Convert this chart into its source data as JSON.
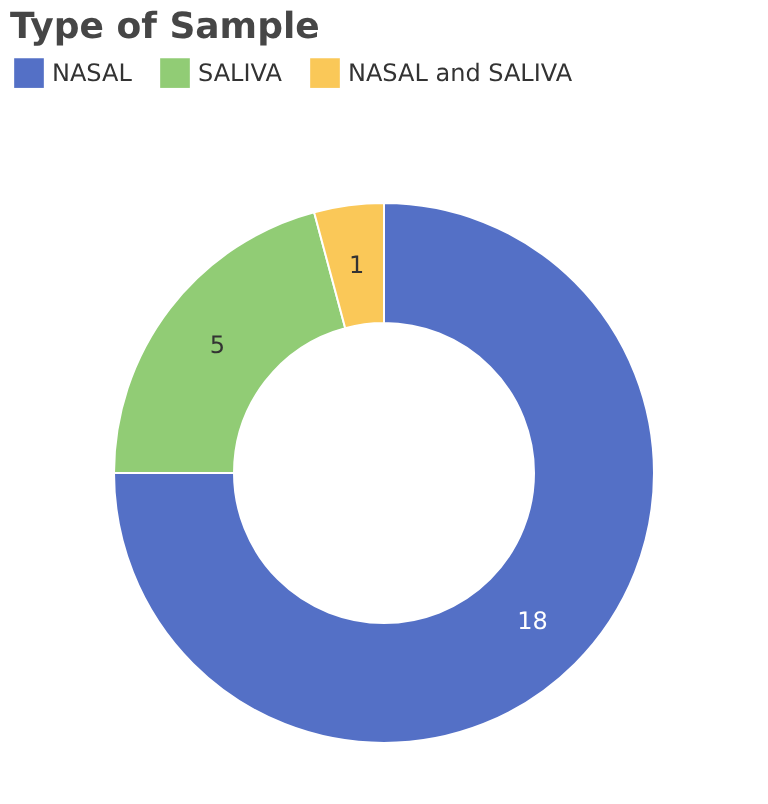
{
  "chart_data": {
    "type": "donut",
    "title": "Type of Sample",
    "categories": [
      "NASAL",
      "SALIVA",
      "NASAL and SALIVA"
    ],
    "values": [
      18,
      5,
      1
    ],
    "colors": [
      "#5470c6",
      "#91cc75",
      "#fac858"
    ],
    "data_labels": true,
    "legend": "top"
  }
}
